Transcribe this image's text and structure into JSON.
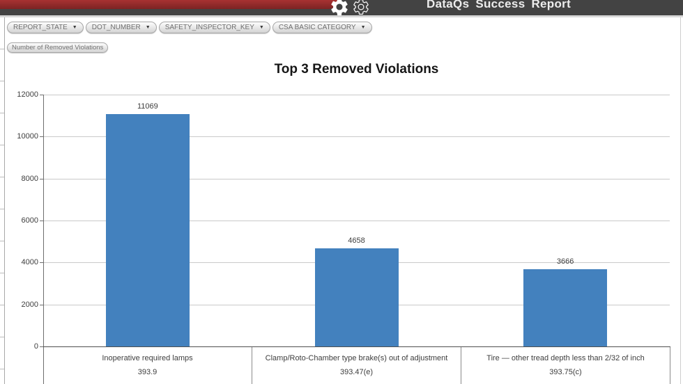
{
  "header": {
    "title": "DataQs Success Report",
    "bar_color": "#434343",
    "ribbon_color": "#9e2b2b",
    "icons": [
      "gear-icon",
      "gear-icon"
    ]
  },
  "icons": {
    "dropdown_arrow": "▼"
  },
  "filters": [
    {
      "label": "REPORT_STATE"
    },
    {
      "label": "DOT_NUMBER"
    },
    {
      "label": "SAFETY_INSPECTOR_KEY"
    },
    {
      "label": "CSA BASIC CATEGORY"
    }
  ],
  "measure_button": "Number of Removed Violations",
  "chart_data": {
    "type": "bar",
    "title": "Top 3 Removed Violations",
    "categories": [
      {
        "label": "Inoperative required lamps",
        "code": "393.9"
      },
      {
        "label": "Clamp/Roto-Chamber type brake(s) out of adjustment",
        "code": "393.47(e)"
      },
      {
        "label": "Tire — other tread depth less than 2/32 of inch",
        "code": "393.75(c)"
      }
    ],
    "values": [
      11069,
      4658,
      3666
    ],
    "data_labels": [
      "11069",
      "4658",
      "3666"
    ],
    "ylim": [
      0,
      12000
    ],
    "yticks": [
      0,
      2000,
      4000,
      6000,
      8000,
      10000,
      12000
    ],
    "xlabel": "",
    "ylabel": "",
    "grid": true,
    "legend": "none",
    "bar_color": "#4381be"
  }
}
